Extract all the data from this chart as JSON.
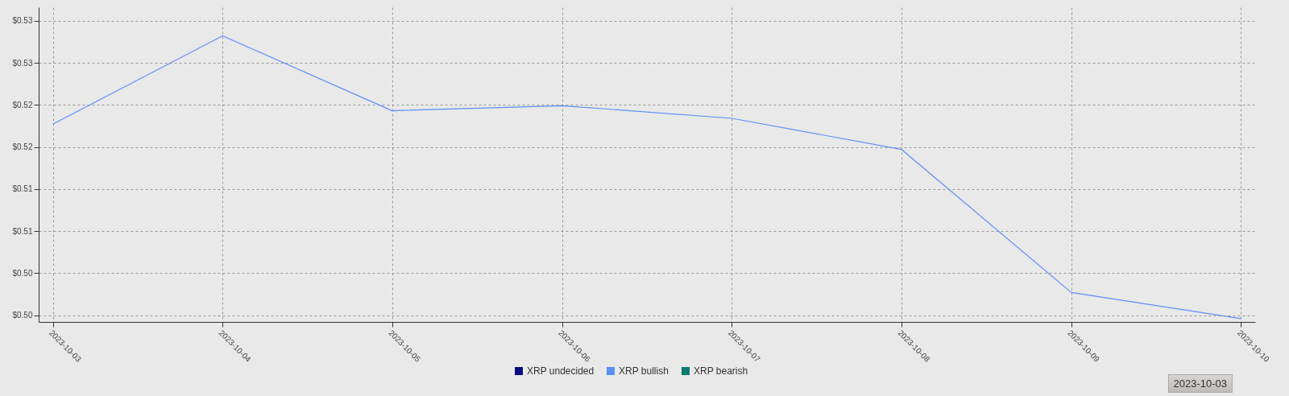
{
  "chart_data": {
    "type": "line",
    "x": [
      "2023-10-03",
      "2023-10-04",
      "2023-10-05",
      "2023-10-06",
      "2023-10-07",
      "2023-10-08",
      "2023-10-09",
      "2023-10-10"
    ],
    "series": [
      {
        "name": "XRP undecided",
        "color": "#0a0a80",
        "values": [
          null,
          null,
          null,
          null,
          null,
          null,
          null,
          null
        ]
      },
      {
        "name": "XRP bullish",
        "color": "#5b8ff9",
        "values": [
          0.5202,
          0.5307,
          0.5218,
          0.5224,
          0.5209,
          0.5172,
          0.5002,
          0.4971
        ]
      },
      {
        "name": "XRP bearish",
        "color": "#0a7a72",
        "values": [
          null,
          null,
          null,
          null,
          null,
          null,
          null,
          null
        ]
      }
    ],
    "xlim": [
      "2023-10-02T22:00",
      "2023-10-10T02:00"
    ],
    "xticks": [
      "2023-10-03",
      "2023-10-04",
      "2023-10-05",
      "2023-10-06",
      "2023-10-07",
      "2023-10-08",
      "2023-10-09",
      "2023-10-10"
    ],
    "ylim": [
      0.4967,
      0.5341
    ],
    "yticks": [
      {
        "value": 0.4975,
        "label": "$0.50"
      },
      {
        "value": 0.5025,
        "label": "$0.50"
      },
      {
        "value": 0.5075,
        "label": "$0.51"
      },
      {
        "value": 0.5125,
        "label": "$0.51"
      },
      {
        "value": 0.5175,
        "label": "$0.52"
      },
      {
        "value": 0.5225,
        "label": "$0.52"
      },
      {
        "value": 0.5275,
        "label": "$0.53"
      },
      {
        "value": 0.5325,
        "label": "$0.53"
      }
    ],
    "grid": true,
    "legend": "bottom",
    "annotations": [
      "2023-10-03"
    ]
  }
}
